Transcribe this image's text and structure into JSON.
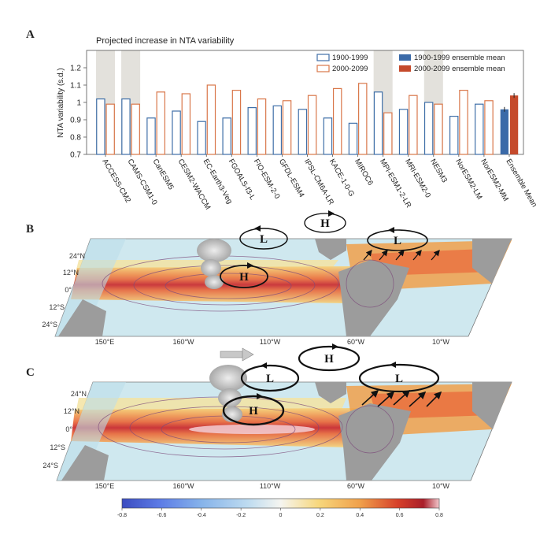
{
  "panels": {
    "a": "A",
    "b": "B",
    "c": "C"
  },
  "chart_data": {
    "type": "bar",
    "title": "Projected increase in NTA variability",
    "ylabel": "NTA variability (s.d.)",
    "ylim": [
      0.7,
      1.3
    ],
    "yticks": [
      "0.7",
      "0.8",
      "0.9",
      "1",
      "1.1",
      "1.2"
    ],
    "categories": [
      "ACCESS-CM2",
      "CAMS-CSM1-0",
      "CanESM5",
      "CESM2-WACCM",
      "EC-Earth3-Veg",
      "FGOALS-f3-L",
      "FIO-ESM-2-0",
      "GFDL-ESM4",
      "IPSL-CM6A-LR",
      "KACE-1-0-G",
      "MIROC6",
      "MPI-ESM1-2-LR",
      "MRI-ESM2-0",
      "NESM3",
      "NorESM2-LM",
      "NorESM2-MM",
      "Ensemble Mean"
    ],
    "highlighted": [
      "ACCESS-CM2",
      "CAMS-CSM1-0",
      "MPI-ESM1-2-LR",
      "NESM3"
    ],
    "series": [
      {
        "name": "1900-1999",
        "values": [
          1.02,
          1.02,
          0.91,
          0.95,
          0.89,
          0.91,
          0.97,
          0.98,
          0.96,
          0.91,
          0.88,
          1.06,
          0.96,
          1.0,
          0.92,
          0.99,
          null
        ],
        "color": "#3f6fa8"
      },
      {
        "name": "2000-2099",
        "values": [
          0.99,
          0.99,
          1.06,
          1.05,
          1.1,
          1.07,
          1.02,
          1.01,
          1.04,
          1.08,
          1.11,
          0.94,
          1.04,
          0.99,
          1.07,
          1.01,
          null
        ],
        "color": "#d9774a"
      },
      {
        "name": "1900-1999 ensemble mean",
        "values": [
          null,
          null,
          null,
          null,
          null,
          null,
          null,
          null,
          null,
          null,
          null,
          null,
          null,
          null,
          null,
          null,
          0.96
        ],
        "color": "#3a6aa8"
      },
      {
        "name": "2000-2099 ensemble mean",
        "values": [
          null,
          null,
          null,
          null,
          null,
          null,
          null,
          null,
          null,
          null,
          null,
          null,
          null,
          null,
          null,
          null,
          1.04
        ],
        "color": "#c54a2b"
      }
    ]
  },
  "maps": {
    "lon_ticks": [
      "150°E",
      "160°W",
      "110°W",
      "60°W",
      "10°W"
    ],
    "lat_ticks": [
      "24°N",
      "12°N",
      "0°",
      "12°S",
      "24°S"
    ],
    "cells_b": [
      {
        "label": "L"
      },
      {
        "label": "H"
      },
      {
        "label": "L"
      },
      {
        "label": "H"
      }
    ],
    "cells_c": [
      {
        "label": "L"
      },
      {
        "label": "H"
      },
      {
        "label": "L"
      },
      {
        "label": "H"
      }
    ],
    "colorbar": {
      "ticks": [
        "-0.8",
        "-0.6",
        "-0.4",
        "-0.2",
        "0",
        "0.2",
        "0.4",
        "0.6",
        "0.8"
      ],
      "colors": [
        "#3b4cc0",
        "#5d7ce6",
        "#86b3ea",
        "#bfdcf0",
        "#f5f5f0",
        "#f7d77c",
        "#f0a04b",
        "#d6402a",
        "#a91e2a",
        "#f2c8cc"
      ]
    }
  }
}
